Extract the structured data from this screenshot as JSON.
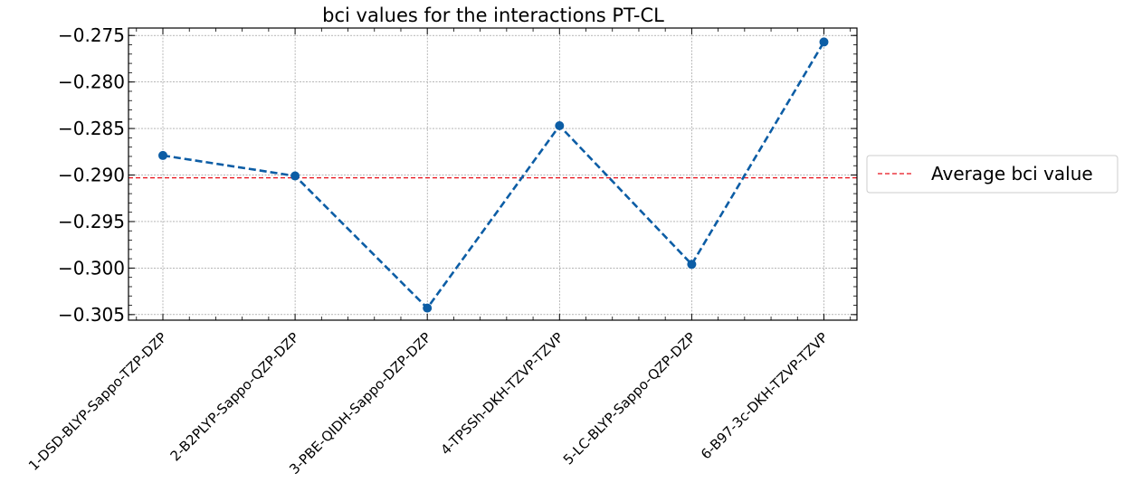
{
  "chart_data": {
    "type": "line",
    "title": "bci values for the interactions PT-CL",
    "xlabel": "",
    "ylabel": "",
    "categories": [
      "1-DSD-BLYP-Sappo-TZP-DZP",
      "2-B2PLYP-Sappo-QZP-DZP",
      "3-PBE-QIDH-Sappo-DZP-DZP",
      "4-TPSSh-DKH-TZVP-TZVP",
      "5-LC-BLYP-Sappo-QZP-DZP",
      "6-B97-3c-DKH-TZVP-TZVP"
    ],
    "values": [
      -0.2879,
      -0.2901,
      -0.3043,
      -0.2847,
      -0.2996,
      -0.2757
    ],
    "ylim": [
      -0.3056,
      -0.2742
    ],
    "yticks": [
      -0.275,
      -0.28,
      -0.285,
      -0.29,
      -0.295,
      -0.3,
      -0.305
    ],
    "ytick_labels": [
      "−0.275",
      "−0.280",
      "−0.285",
      "−0.290",
      "−0.295",
      "−0.300",
      "−0.305"
    ],
    "reference_line": {
      "value": -0.2903,
      "label": "Average bci value",
      "color": "#e8111a",
      "style": "dashed"
    },
    "series_color": "#0c5da5",
    "series_style": "dashed line with circle markers",
    "grid": true,
    "legend": {
      "placement": "outside-right",
      "entries": [
        "Average bci value"
      ]
    }
  }
}
